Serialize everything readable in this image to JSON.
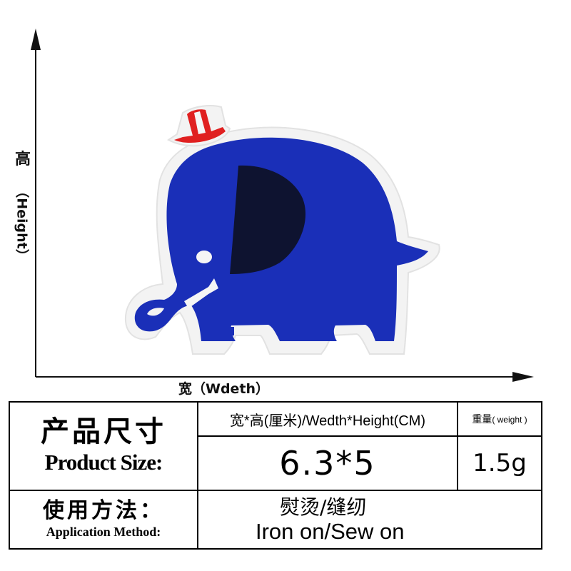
{
  "axes": {
    "height_label_zh": "高",
    "height_label_en": "（Height）",
    "width_label": "宽（Wdeth）"
  },
  "colors": {
    "elephant_body": "#1a2fb8",
    "elephant_ear": "#0e1330",
    "hat_red": "#e02020",
    "felt_border": "#f2f2f2",
    "line": "#111111"
  },
  "table": {
    "product_size_zh": "产品尺寸",
    "product_size_en": "Product Size:",
    "dimension_header": "宽*高(厘米)/Wedth*Height(CM)",
    "weight_header_zh": "重量",
    "weight_header_en": "( weight )",
    "dimension_value": "6.3*5",
    "weight_value": "1.5g",
    "method_zh": "使用方法：",
    "method_en": "Application Method:",
    "method_value_zh": "熨烫/缝纫",
    "method_value_en": "Iron on/Sew on"
  }
}
